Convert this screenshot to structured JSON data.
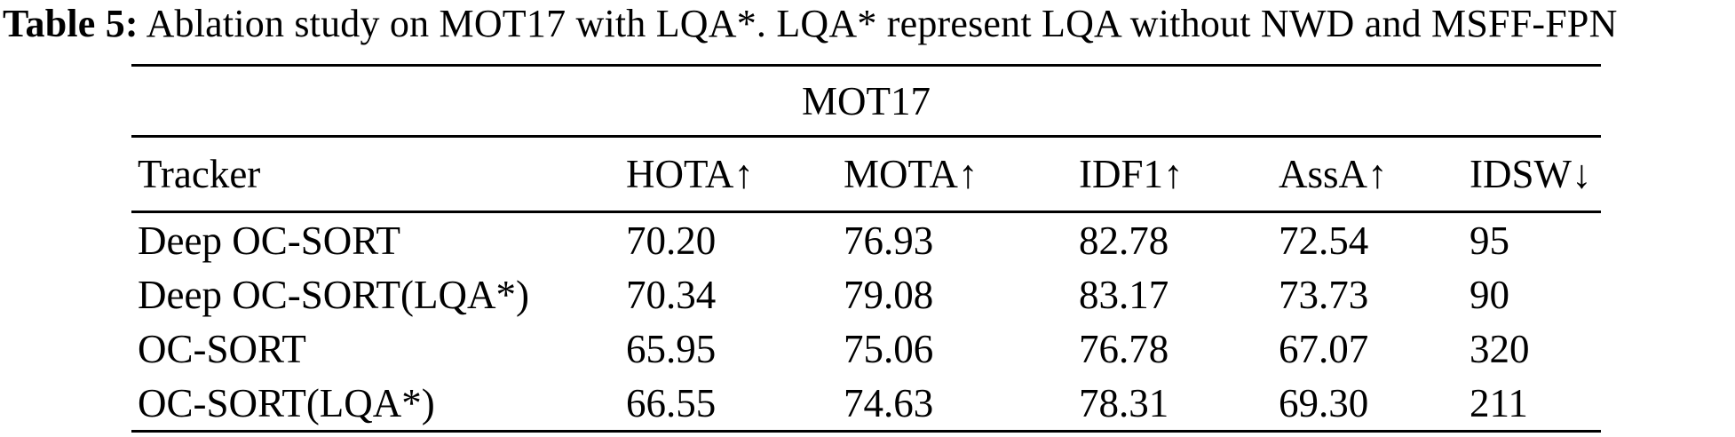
{
  "caption": {
    "label": "Table 5:",
    "text": " Ablation study on MOT17 with LQA*. LQA* represent LQA without NWD and MSFF-FPN"
  },
  "table": {
    "group_header": "MOT17",
    "columns": [
      "Tracker",
      "HOTA↑",
      "MOTA↑",
      "IDF1↑",
      "AssA↑",
      "IDSW↓"
    ],
    "rows": [
      [
        "Deep OC-SORT",
        "70.20",
        "76.93",
        "82.78",
        "72.54",
        "95"
      ],
      [
        "Deep OC-SORT(LQA*)",
        "70.34",
        "79.08",
        "83.17",
        "73.73",
        "90"
      ],
      [
        "OC-SORT",
        "65.95",
        "75.06",
        "76.78",
        "67.07",
        "320"
      ],
      [
        "OC-SORT(LQA*)",
        "66.55",
        "74.63",
        "78.31",
        "69.30",
        "211"
      ]
    ]
  }
}
